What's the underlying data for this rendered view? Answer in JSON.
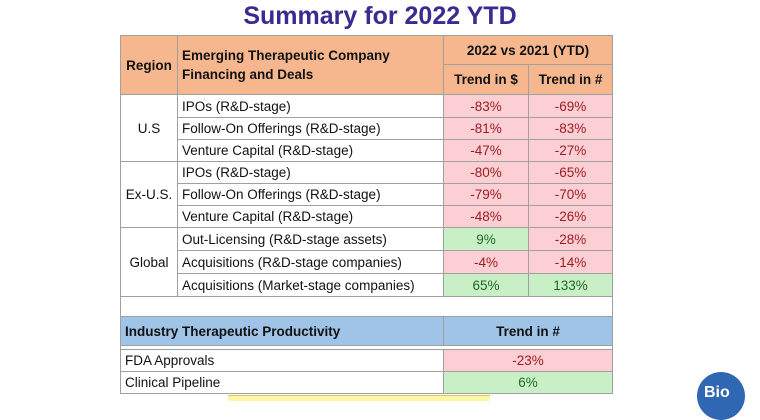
{
  "title": "Summary for 2022 YTD",
  "header": {
    "region": "Region",
    "emerging_line1": "Emerging Therapeutic Company",
    "emerging_line2": "Financing and Deals",
    "comparison": "2022 vs 2021 (YTD)",
    "trend_dollar": "Trend in $",
    "trend_count": "Trend in #"
  },
  "groups": [
    {
      "region": "U.S",
      "rows": [
        {
          "label": "IPOs (R&D-stage)",
          "dollar": "-83%",
          "count": "-69%"
        },
        {
          "label": "Follow-On Offerings  (R&D-stage)",
          "dollar": "-81%",
          "count": "-83%"
        },
        {
          "label": "Venture Capital  (R&D-stage)",
          "dollar": "-47%",
          "count": "-27%"
        }
      ]
    },
    {
      "region": "Ex-U.S.",
      "rows": [
        {
          "label": "IPOs  (R&D-stage)",
          "dollar": "-80%",
          "count": "-65%"
        },
        {
          "label": "Follow-On Offerings  (R&D-stage)",
          "dollar": "-79%",
          "count": "-70%"
        },
        {
          "label": "Venture Capital  (R&D-stage)",
          "dollar": "-48%",
          "count": "-26%"
        }
      ]
    },
    {
      "region": "Global",
      "rows": [
        {
          "label": "Out-Licensing (R&D-stage assets)",
          "dollar": "9%",
          "count": "-28%"
        },
        {
          "label": "Acquisitions (R&D-stage companies)",
          "dollar": "-4%",
          "count": "-14%"
        },
        {
          "label": "Acquisitions (Market-stage companies)",
          "dollar": "65%",
          "count": "133%"
        }
      ]
    }
  ],
  "productivity": {
    "header": "Industry Therapeutic Productivity",
    "trend_header": "Trend in #",
    "rows": [
      {
        "label": "FDA Approvals",
        "value": "-23%"
      },
      {
        "label": "Clinical Pipeline",
        "value": "6%"
      }
    ]
  },
  "logo_text": "Bio",
  "colors": {
    "title": "#3b2a8f",
    "header_orange": "#f6b78f",
    "negative_fill": "#fbcfd3",
    "positive_fill": "#c9efc7",
    "productivity_header": "#9fc4e7"
  }
}
